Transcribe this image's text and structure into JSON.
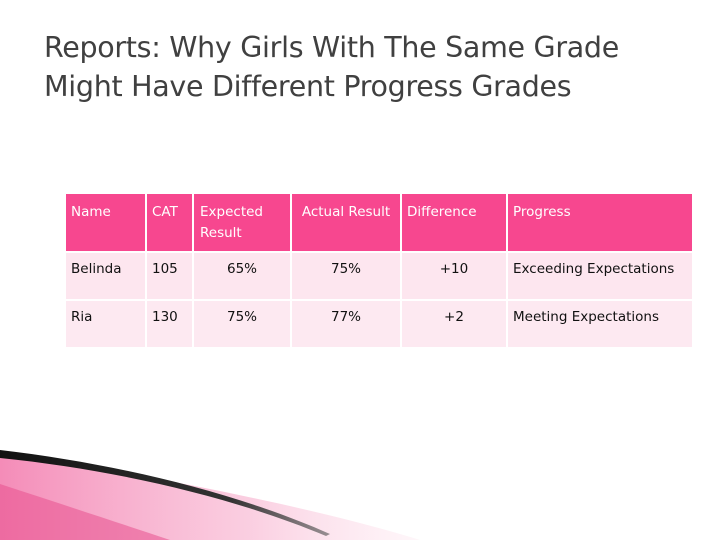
{
  "slide": {
    "title_line1": "Reports: Why Girls With The Same Grade",
    "title_line2": "Might Have Different Progress Grades"
  },
  "table": {
    "headers": {
      "name": "Name",
      "cat": "CAT",
      "expected_line1": "Expected",
      "expected_line2": "Result",
      "actual": "Actual Result",
      "difference": "Difference",
      "progress": "Progress"
    },
    "rows": [
      {
        "name": "Belinda",
        "cat": "105",
        "expected": "65%",
        "actual": "75%",
        "difference": "+10",
        "progress": "Exceeding Expectations"
      },
      {
        "name": "Ria",
        "cat": "130",
        "expected": "75%",
        "actual": "77%",
        "difference": "+2",
        "progress": "Meeting Expectations"
      }
    ]
  },
  "colors": {
    "header_bg": "#f7478f",
    "row_bg": "#fde6ef",
    "title_text": "#404040",
    "accent_pink": "#f37fb0",
    "accent_dark": "#1a1a1a"
  }
}
